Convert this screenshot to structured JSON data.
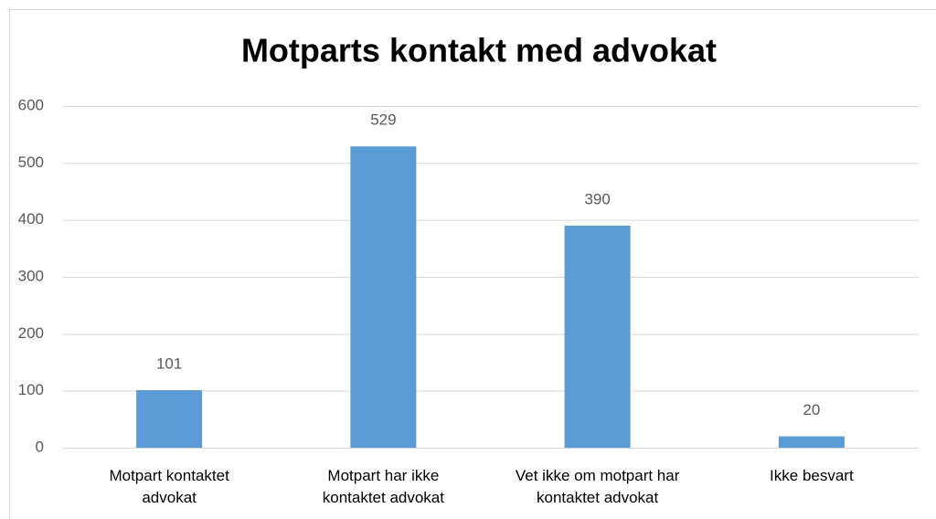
{
  "chart_data": {
    "type": "bar",
    "title": "Motparts kontakt med advokat",
    "categories": [
      "Motpart kontaktet advokat",
      "Motpart har ikke kontaktet advokat",
      "Vet ikke om motpart har kontaktet advokat",
      "Ikke besvart"
    ],
    "values": [
      101,
      529,
      390,
      20
    ],
    "color": "#5b9bd5",
    "ylim": [
      0,
      600
    ],
    "yticks": [
      0,
      100,
      200,
      300,
      400,
      500,
      600
    ],
    "grid": true,
    "data_labels": true
  }
}
